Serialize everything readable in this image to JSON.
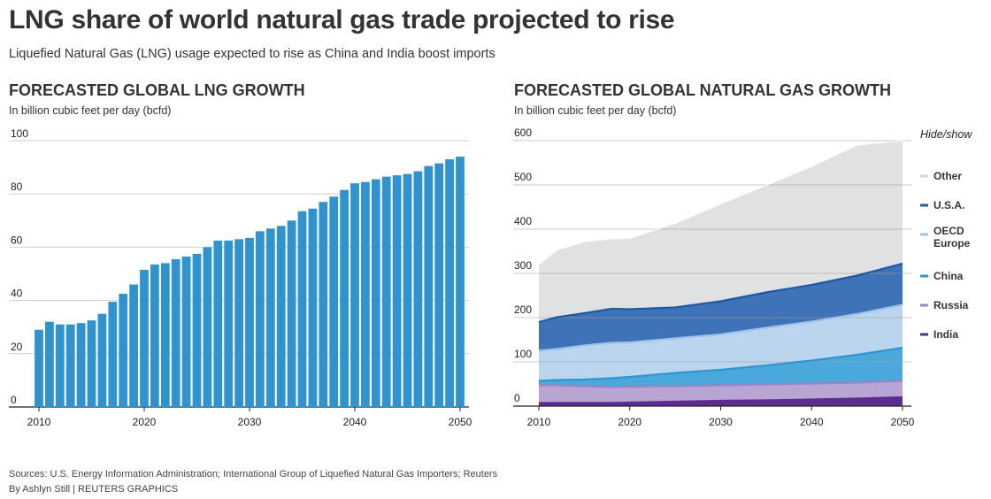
{
  "header": {
    "title": "LNG share of world natural gas trade projected to rise",
    "subtitle": "Liquefied Natural Gas (LNG) usage expected to rise as China and India boost imports"
  },
  "left_chart": {
    "title": "FORECASTED GLOBAL LNG GROWTH",
    "unit": "In billion cubic feet per day (bcfd)"
  },
  "right_chart": {
    "title": "FORECASTED GLOBAL NATURAL GAS GROWTH",
    "unit": "In billion cubic feet per day (bcfd)",
    "legend_title": "Hide/show"
  },
  "footer": {
    "sources": "Sources: U.S. Energy Information Administration; International Group of Liquefied Natural Gas Importers; Reuters",
    "byline": "By Ashlyn Still | REUTERS GRAPHICS"
  },
  "colors": {
    "bar": "#2f93d0",
    "other": "#e0e1e3",
    "usa": "#1c5aa3",
    "usa_fill": "#3f73b8",
    "oecd_europe": "#bcd5ee",
    "oecd_line": "#9fc3e8",
    "china": "#2e96cf",
    "china_fill": "#4aa8dc",
    "russia": "#b8a5d4",
    "russia_line": "#9a86c6",
    "india": "#5c2d91"
  },
  "chart_data": [
    {
      "type": "bar",
      "title": "FORECASTED GLOBAL LNG GROWTH",
      "ylabel": "In billion cubic feet per day (bcfd)",
      "x": [
        2010,
        2011,
        2012,
        2013,
        2014,
        2015,
        2016,
        2017,
        2018,
        2019,
        2020,
        2021,
        2022,
        2023,
        2024,
        2025,
        2026,
        2027,
        2028,
        2029,
        2030,
        2031,
        2032,
        2033,
        2034,
        2035,
        2036,
        2037,
        2038,
        2039,
        2040,
        2041,
        2042,
        2043,
        2044,
        2045,
        2046,
        2047,
        2048,
        2049,
        2050
      ],
      "values": [
        29,
        32,
        31,
        31,
        31.5,
        32.5,
        35,
        39.5,
        42.5,
        46,
        51.5,
        53.5,
        54,
        55.5,
        56.5,
        57.5,
        60,
        62.5,
        62.5,
        63,
        63.5,
        66,
        67,
        68,
        70,
        73.5,
        74.5,
        77,
        79,
        81.5,
        84,
        84.5,
        85.5,
        86.5,
        87,
        87.5,
        88.5,
        90.5,
        91.5,
        93,
        94
      ],
      "xticks": [
        "2010",
        "2020",
        "2030",
        "2040",
        "2050"
      ],
      "yticks": [
        "0",
        "20",
        "40",
        "60",
        "80",
        "100"
      ],
      "ylim": [
        0,
        100
      ],
      "grid": true
    },
    {
      "type": "area",
      "title": "FORECASTED GLOBAL NATURAL GAS GROWTH",
      "ylabel": "In billion cubic feet per day (bcfd)",
      "stacked": true,
      "x": [
        2010,
        2012,
        2015,
        2018,
        2020,
        2025,
        2030,
        2035,
        2040,
        2045,
        2050
      ],
      "xticks": [
        "2010",
        "2020",
        "2030",
        "2040",
        "2050"
      ],
      "yticks": [
        "0",
        "100",
        "200",
        "300",
        "400",
        "500",
        "600"
      ],
      "ylim": [
        0,
        600
      ],
      "grid": true,
      "legend_position": "right",
      "series": [
        {
          "name": "India",
          "key": "india",
          "values": [
            7,
            7,
            7,
            7,
            8,
            10,
            12,
            13,
            15,
            17,
            20
          ]
        },
        {
          "name": "Russia",
          "key": "russia",
          "values": [
            40,
            40,
            38,
            36,
            36,
            35,
            35,
            36,
            36,
            36,
            37
          ]
        },
        {
          "name": "China",
          "key": "china",
          "values": [
            10,
            12,
            15,
            20,
            22,
            30,
            35,
            43,
            52,
            63,
            75
          ]
        },
        {
          "name": "OECD Europe",
          "key": "oecd_europe",
          "values": [
            68,
            70,
            77,
            80,
            78,
            78,
            80,
            85,
            88,
            92,
            97
          ]
        },
        {
          "name": "U.S.A.",
          "key": "usa",
          "values": [
            65,
            72,
            73,
            77,
            75,
            70,
            75,
            80,
            83,
            87,
            93
          ]
        },
        {
          "name": "Other",
          "key": "other",
          "values": [
            130,
            152,
            162,
            158,
            160,
            190,
            220,
            242,
            268,
            295,
            278
          ]
        }
      ]
    }
  ]
}
